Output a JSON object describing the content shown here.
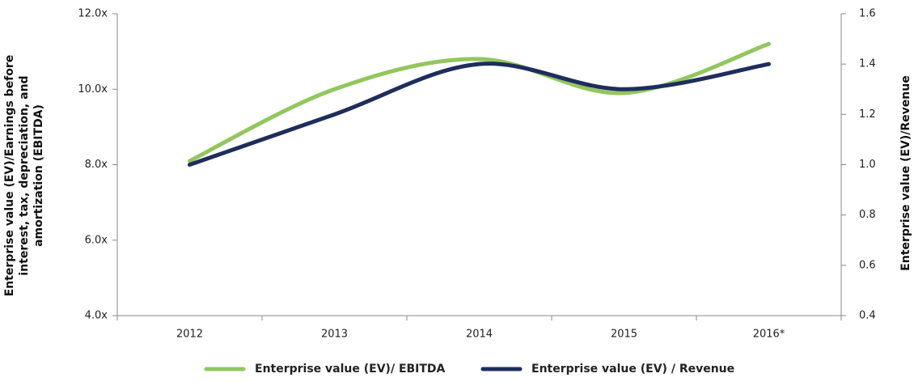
{
  "chart_data": {
    "type": "line",
    "categories": [
      "2012",
      "2013",
      "2014",
      "2015",
      "2016*"
    ],
    "series": [
      {
        "name": "Enterprise value (EV)/ EBITDA",
        "color": "#92c65e",
        "values": [
          8.1,
          10.0,
          10.8,
          9.9,
          11.2
        ]
      },
      {
        "name": "Enterprise value (EV) / Revenue",
        "color": "#1f2d5c",
        "axis": "y2",
        "values": [
          1.0,
          1.2,
          1.4,
          1.3,
          1.4
        ]
      }
    ],
    "ylabel": "Enterprise value (EV)/Earnings before interest, tax, depreciation, and amortization (EBITDA)",
    "y2label": "Enterprise value (EV)/Revenue",
    "ylim": [
      4,
      12
    ],
    "yticks": [
      {
        "value": 4,
        "label": "4.0x"
      },
      {
        "value": 6,
        "label": "6.0x"
      },
      {
        "value": 8,
        "label": "8.0x"
      },
      {
        "value": 10,
        "label": "10.0x"
      },
      {
        "value": 12,
        "label": "12.0x"
      }
    ],
    "y2lim": [
      0.4,
      1.6
    ],
    "y2ticks": [
      0.4,
      0.6,
      0.8,
      {
        "value": 1,
        "label": "1.0"
      },
      1.2,
      1.4,
      1.6
    ],
    "legend": "bottom",
    "grid": false
  }
}
